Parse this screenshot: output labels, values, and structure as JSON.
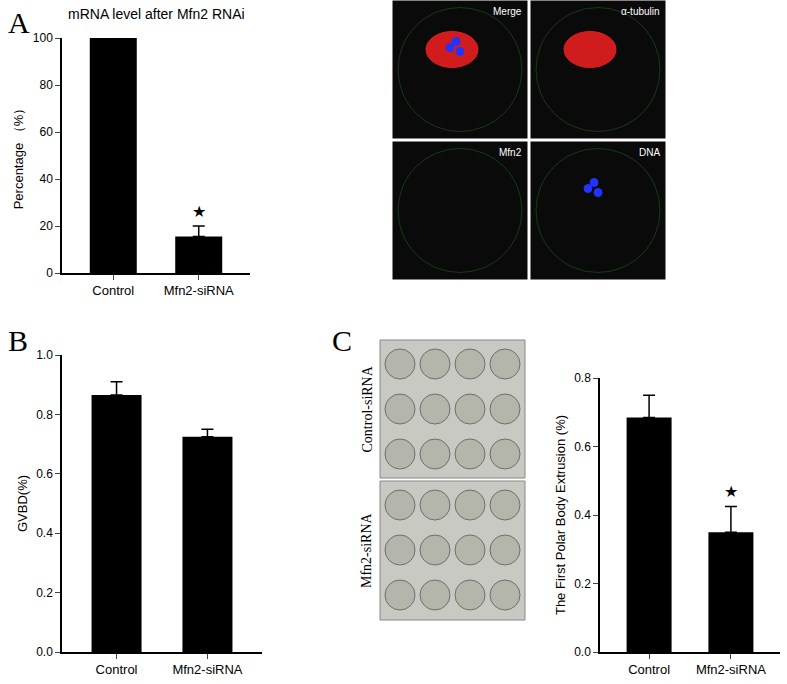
{
  "chart_data": [
    {
      "type": "bar",
      "panel": "A",
      "title": "mRNA level after Mfn2 RNAi",
      "y_label": "Percentage （%）",
      "categories": [
        "Control",
        "Mfn2-siRNA"
      ],
      "values": [
        100,
        15.5
      ],
      "errors": [
        null,
        4.5
      ],
      "color": "#000000",
      "ylim": [
        0,
        100
      ],
      "yticks": [
        0,
        20,
        40,
        60,
        80,
        100
      ],
      "annotations": [
        {
          "category": "Mfn2-siRNA",
          "text": "★"
        }
      ]
    },
    {
      "type": "bar",
      "panel": "B",
      "y_label": "GVBD(%)",
      "categories": [
        "Control",
        "Mfn2-siRNA"
      ],
      "values": [
        0.865,
        0.725
      ],
      "errors": [
        0.045,
        0.025
      ],
      "color": "#000000",
      "ylim": [
        0,
        1.0
      ],
      "yticks": [
        {
          "value": 0,
          "label": "0.0"
        },
        0.2,
        0.4,
        0.6,
        0.8,
        {
          "value": 1.0,
          "label": "1.0"
        }
      ]
    },
    {
      "type": "bar",
      "panel": "C",
      "y_label": "The First Polar Body Extrusion (%)",
      "categories": [
        "Control",
        "Mfn2-siRNA"
      ],
      "values": [
        0.685,
        0.35
      ],
      "errors": [
        0.065,
        0.075
      ],
      "color": "#000000",
      "ylim": [
        0,
        0.8
      ],
      "yticks": [
        {
          "value": 0,
          "label": "0.0"
        },
        0.2,
        0.4,
        0.6,
        0.8
      ],
      "annotations": [
        {
          "category": "Mfn2-siRNA",
          "text": "★"
        }
      ]
    }
  ],
  "micrographs": [
    {
      "panel": "A",
      "labels": [
        "Merge",
        "α-tubulin",
        "Mfn2",
        "DNA"
      ]
    },
    {
      "panel": "C",
      "labels": [
        "Control-siRNA",
        "Mfn2-siRNA"
      ]
    }
  ]
}
